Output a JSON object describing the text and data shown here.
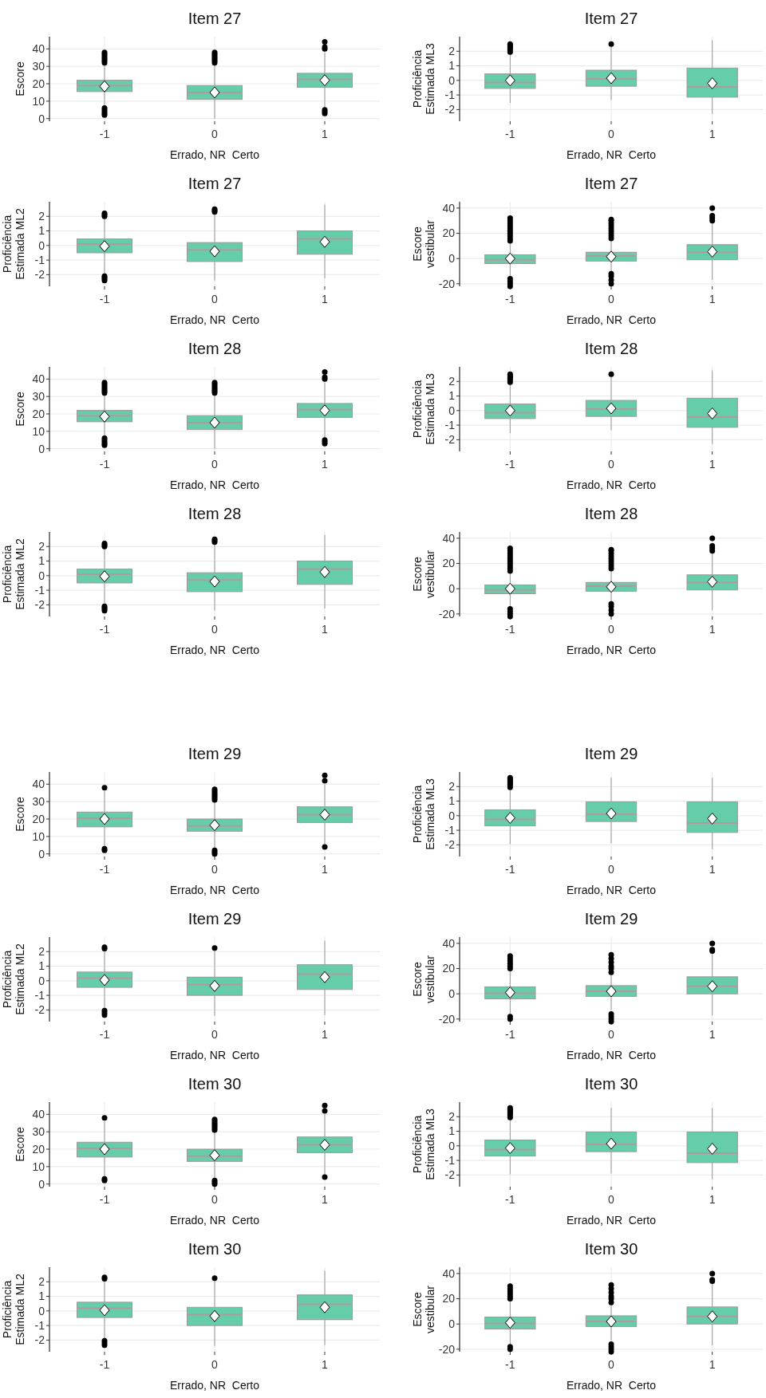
{
  "chart_data": [
    {
      "type": "box",
      "title": "Item 27",
      "xlabel": "Errado, NR  Certo",
      "ylabel": "Escore",
      "categories": [
        "-1",
        "0",
        "1"
      ],
      "color": "#66cdaa",
      "grid": true,
      "ylim": [
        -1.5,
        47
      ],
      "yticks": [
        0,
        10,
        20,
        30,
        40
      ],
      "boxes": [
        {
          "low": 7,
          "q1": 15.5,
          "median": 19,
          "q3": 22,
          "high": 31,
          "mean": 18.5,
          "outliers": [
            2,
            3,
            4,
            5,
            6,
            32,
            33,
            34,
            35,
            36,
            37,
            38
          ]
        },
        {
          "low": 0,
          "q1": 11,
          "median": 15,
          "q3": 19,
          "high": 31,
          "mean": 15,
          "outliers": [
            32,
            33,
            34,
            35,
            36,
            37,
            38
          ]
        },
        {
          "low": 6,
          "q1": 18,
          "median": 22.5,
          "q3": 26,
          "high": 38,
          "mean": 22,
          "outliers": [
            3,
            4,
            5,
            40,
            41,
            44
          ]
        }
      ]
    },
    {
      "type": "box",
      "title": "Item 27",
      "xlabel": "Errado, NR  Certo",
      "ylabel": "Proficiência\nEstimada ML3",
      "categories": [
        "-1",
        "0",
        "1"
      ],
      "color": "#66cdaa",
      "grid": true,
      "ylim": [
        -2.8,
        3.0
      ],
      "yticks": [
        -2,
        -1,
        0,
        1,
        2
      ],
      "boxes": [
        {
          "low": -1.55,
          "q1": -0.55,
          "median": -0.15,
          "q3": 0.45,
          "high": 1.85,
          "mean": 0,
          "outliers": [
            1.95,
            2.1,
            2.2,
            2.3,
            2.4,
            2.5
          ]
        },
        {
          "low": -1.35,
          "q1": -0.4,
          "median": 0.1,
          "q3": 0.7,
          "high": 2.35,
          "mean": 0.15,
          "outliers": [
            2.5
          ]
        },
        {
          "low": -2.3,
          "q1": -1.15,
          "median": -0.45,
          "q3": 0.85,
          "high": 2.75,
          "mean": -0.2
        }
      ]
    },
    {
      "type": "box",
      "title": "Item 27",
      "xlabel": "Errado, NR  Certo",
      "ylabel": "Proficiência\nEstimada ML2",
      "categories": [
        "-1",
        "0",
        "1"
      ],
      "color": "#66cdaa",
      "grid": true,
      "ylim": [
        -2.8,
        3.0
      ],
      "yticks": [
        -2,
        -1,
        0,
        1,
        2
      ],
      "boxes": [
        {
          "low": -1.9,
          "q1": -0.5,
          "median": 0.1,
          "q3": 0.45,
          "high": 1.85,
          "mean": -0.05,
          "outliers": [
            -2.4,
            -2.3,
            -2.2,
            -2.1,
            2,
            2.1,
            2.2
          ]
        },
        {
          "low": -2.4,
          "q1": -1.1,
          "median": -0.3,
          "q3": 0.2,
          "high": 2.2,
          "mean": -0.4,
          "outliers": [
            2.3,
            2.4,
            2.5
          ]
        },
        {
          "low": -2.25,
          "q1": -0.6,
          "median": 0.45,
          "q3": 1,
          "high": 2.8,
          "mean": 0.25
        }
      ]
    },
    {
      "type": "box",
      "title": "Item 27",
      "xlabel": "Errado, NR  Certo",
      "ylabel": "Escore\nvestibular",
      "categories": [
        "-1",
        "0",
        "1"
      ],
      "color": "#66cdaa",
      "grid": true,
      "ylim": [
        -22,
        45
      ],
      "yticks": [
        -20,
        0,
        20,
        40
      ],
      "boxes": [
        {
          "low": -14,
          "q1": -4,
          "median": -1,
          "q3": 3,
          "high": 12,
          "mean": 0,
          "outliers": [
            -22,
            -20,
            -18,
            -16,
            14,
            16,
            18,
            20,
            22,
            24,
            26,
            28,
            30,
            32
          ]
        },
        {
          "low": -11,
          "q1": -2,
          "median": 2,
          "q3": 5,
          "high": 15,
          "mean": 1.5,
          "outliers": [
            -20,
            -17,
            -14,
            -12,
            16,
            18,
            20,
            22,
            24,
            26,
            28,
            30,
            31
          ]
        },
        {
          "low": -17,
          "q1": -1,
          "median": 5,
          "q3": 11,
          "high": 28,
          "mean": 5.5,
          "outliers": [
            30,
            32,
            34,
            40
          ]
        }
      ]
    },
    {
      "type": "box",
      "title": "Item 28",
      "xlabel": "Errado, NR  Certo",
      "ylabel": "Escore",
      "categories": [
        "-1",
        "0",
        "1"
      ],
      "color": "#66cdaa",
      "grid": true,
      "ylim": [
        -1.5,
        47
      ],
      "yticks": [
        0,
        10,
        20,
        30,
        40
      ],
      "boxes": [
        {
          "low": 7,
          "q1": 15.5,
          "median": 19,
          "q3": 22,
          "high": 31,
          "mean": 18.5,
          "outliers": [
            2,
            3,
            4,
            5,
            6,
            32,
            33,
            34,
            35,
            36,
            37,
            38
          ]
        },
        {
          "low": 0,
          "q1": 11,
          "median": 15,
          "q3": 19,
          "high": 31,
          "mean": 15,
          "outliers": [
            32,
            33,
            34,
            35,
            36,
            37,
            38
          ]
        },
        {
          "low": 6,
          "q1": 18,
          "median": 22.5,
          "q3": 26,
          "high": 38,
          "mean": 22,
          "outliers": [
            3,
            4,
            5,
            40,
            41,
            44
          ]
        }
      ]
    },
    {
      "type": "box",
      "title": "Item 28",
      "xlabel": "Errado, NR  Certo",
      "ylabel": "Proficiência\nEstimada ML3",
      "categories": [
        "-1",
        "0",
        "1"
      ],
      "color": "#66cdaa",
      "grid": true,
      "ylim": [
        -2.8,
        3.0
      ],
      "yticks": [
        -2,
        -1,
        0,
        1,
        2
      ],
      "boxes": [
        {
          "low": -1.55,
          "q1": -0.55,
          "median": -0.15,
          "q3": 0.45,
          "high": 1.85,
          "mean": 0,
          "outliers": [
            1.95,
            2.1,
            2.2,
            2.3,
            2.4,
            2.5
          ]
        },
        {
          "low": -1.35,
          "q1": -0.4,
          "median": 0.1,
          "q3": 0.7,
          "high": 2.35,
          "mean": 0.15,
          "outliers": [
            2.5
          ]
        },
        {
          "low": -2.3,
          "q1": -1.15,
          "median": -0.45,
          "q3": 0.85,
          "high": 2.75,
          "mean": -0.2
        }
      ]
    },
    {
      "type": "box",
      "title": "Item 28",
      "xlabel": "Errado, NR  Certo",
      "ylabel": "Proficiência\nEstimada ML2",
      "categories": [
        "-1",
        "0",
        "1"
      ],
      "color": "#66cdaa",
      "grid": true,
      "ylim": [
        -2.8,
        3.0
      ],
      "yticks": [
        -2,
        -1,
        0,
        1,
        2
      ],
      "boxes": [
        {
          "low": -1.9,
          "q1": -0.5,
          "median": 0.1,
          "q3": 0.45,
          "high": 1.85,
          "mean": -0.05,
          "outliers": [
            -2.4,
            -2.3,
            -2.2,
            -2.1,
            2,
            2.1,
            2.2
          ]
        },
        {
          "low": -2.4,
          "q1": -1.1,
          "median": -0.3,
          "q3": 0.2,
          "high": 2.2,
          "mean": -0.4,
          "outliers": [
            2.3,
            2.4,
            2.5
          ]
        },
        {
          "low": -2.25,
          "q1": -0.6,
          "median": 0.45,
          "q3": 1,
          "high": 2.8,
          "mean": 0.25
        }
      ]
    },
    {
      "type": "box",
      "title": "Item 28",
      "xlabel": "Errado, NR  Certo",
      "ylabel": "Escore\nvestibular",
      "categories": [
        "-1",
        "0",
        "1"
      ],
      "color": "#66cdaa",
      "grid": true,
      "ylim": [
        -22,
        45
      ],
      "yticks": [
        -20,
        0,
        20,
        40
      ],
      "boxes": [
        {
          "low": -14,
          "q1": -4,
          "median": -1,
          "q3": 3,
          "high": 12,
          "mean": 0,
          "outliers": [
            -22,
            -20,
            -18,
            -16,
            14,
            16,
            18,
            20,
            22,
            24,
            26,
            28,
            30,
            32
          ]
        },
        {
          "low": -11,
          "q1": -2,
          "median": 2,
          "q3": 5,
          "high": 15,
          "mean": 1.5,
          "outliers": [
            -20,
            -17,
            -14,
            -12,
            16,
            18,
            20,
            22,
            24,
            26,
            28,
            30,
            31
          ]
        },
        {
          "low": -17,
          "q1": -1,
          "median": 5,
          "q3": 11,
          "high": 28,
          "mean": 5.5,
          "outliers": [
            30,
            32,
            34,
            40
          ]
        }
      ]
    },
    {
      "type": "box",
      "title": "Item 29",
      "xlabel": "Errado, NR  Certo",
      "ylabel": "Escore",
      "categories": [
        "-1",
        "0",
        "1"
      ],
      "color": "#66cdaa",
      "grid": true,
      "ylim": [
        -1.5,
        47
      ],
      "yticks": [
        0,
        10,
        20,
        30,
        40
      ],
      "boxes": [
        {
          "low": 4,
          "q1": 15.5,
          "median": 20.5,
          "q3": 24,
          "high": 36,
          "mean": 20,
          "outliers": [
            2,
            3,
            38
          ]
        },
        {
          "low": 3,
          "q1": 13,
          "median": 16,
          "q3": 20,
          "high": 30,
          "mean": 16.5,
          "outliers": [
            0,
            1,
            2,
            31,
            32,
            33,
            34,
            35,
            36,
            37
          ]
        },
        {
          "low": 5,
          "q1": 18,
          "median": 22.5,
          "q3": 27,
          "high": 40,
          "mean": 22.5,
          "outliers": [
            4,
            42,
            45
          ]
        }
      ]
    },
    {
      "type": "box",
      "title": "Item 29",
      "xlabel": "Errado, NR  Certo",
      "ylabel": "Proficiência\nEstimada ML3",
      "categories": [
        "-1",
        "0",
        "1"
      ],
      "color": "#66cdaa",
      "grid": true,
      "ylim": [
        -2.8,
        3.0
      ],
      "yticks": [
        -2,
        -1,
        0,
        1,
        2
      ],
      "boxes": [
        {
          "low": -1.95,
          "q1": -0.7,
          "median": -0.25,
          "q3": 0.4,
          "high": 1.85,
          "mean": -0.15,
          "outliers": [
            1.95,
            2.1,
            2.2,
            2.3,
            2.4,
            2.5,
            2.6
          ]
        },
        {
          "low": -1.9,
          "q1": -0.4,
          "median": 0.1,
          "q3": 0.95,
          "high": 2.6,
          "mean": 0.15
        },
        {
          "low": -2.3,
          "q1": -1.15,
          "median": -0.5,
          "q3": 0.95,
          "high": 2.6,
          "mean": -0.2
        }
      ]
    },
    {
      "type": "box",
      "title": "Item 29",
      "xlabel": "Errado, NR  Certo",
      "ylabel": "Proficiência\nEstimada ML2",
      "categories": [
        "-1",
        "0",
        "1"
      ],
      "color": "#66cdaa",
      "grid": true,
      "ylim": [
        -2.8,
        3.0
      ],
      "yticks": [
        -2,
        -1,
        0,
        1,
        2
      ],
      "boxes": [
        {
          "low": -1.9,
          "q1": -0.45,
          "median": 0.2,
          "q3": 0.6,
          "high": 2,
          "mean": 0.05,
          "outliers": [
            -2.35,
            -2.2,
            -2.05,
            2.2,
            2.3
          ]
        },
        {
          "low": -2.4,
          "q1": -1,
          "median": -0.25,
          "q3": 0.25,
          "high": 2.15,
          "mean": -0.35,
          "outliers": [
            2.25
          ]
        },
        {
          "low": -2.35,
          "q1": -0.6,
          "median": 0.45,
          "q3": 1.1,
          "high": 2.75,
          "mean": 0.25
        }
      ]
    },
    {
      "type": "box",
      "title": "Item 29",
      "xlabel": "Errado, NR  Certo",
      "ylabel": "Escore\nvestibular",
      "categories": [
        "-1",
        "0",
        "1"
      ],
      "color": "#66cdaa",
      "grid": true,
      "ylim": [
        -22,
        45
      ],
      "yticks": [
        -20,
        0,
        20,
        40
      ],
      "boxes": [
        {
          "low": -16,
          "q1": -4,
          "median": 0.5,
          "q3": 5.5,
          "high": 18,
          "mean": 1,
          "outliers": [
            -20,
            -18,
            20,
            22,
            24,
            26,
            28,
            30
          ]
        },
        {
          "low": -13,
          "q1": -2,
          "median": 2,
          "q3": 6.5,
          "high": 15,
          "mean": 2,
          "outliers": [
            -22,
            -20,
            -18,
            -16,
            17,
            20,
            22,
            25,
            28,
            31
          ]
        },
        {
          "low": -17,
          "q1": 0,
          "median": 6,
          "q3": 13.5,
          "high": 32,
          "mean": 6,
          "outliers": [
            34,
            35,
            40
          ]
        }
      ]
    },
    {
      "type": "box",
      "title": "Item 30",
      "xlabel": "Errado, NR  Certo",
      "ylabel": "Escore",
      "categories": [
        "-1",
        "0",
        "1"
      ],
      "color": "#66cdaa",
      "grid": true,
      "ylim": [
        -1.5,
        47
      ],
      "yticks": [
        0,
        10,
        20,
        30,
        40
      ],
      "boxes": [
        {
          "low": 4,
          "q1": 15.5,
          "median": 20.5,
          "q3": 24,
          "high": 36,
          "mean": 20,
          "outliers": [
            2,
            3,
            38
          ]
        },
        {
          "low": 3,
          "q1": 13,
          "median": 16,
          "q3": 20,
          "high": 30,
          "mean": 16.5,
          "outliers": [
            0,
            1,
            2,
            31,
            32,
            33,
            34,
            35,
            36,
            37
          ]
        },
        {
          "low": 5,
          "q1": 18,
          "median": 22.5,
          "q3": 27,
          "high": 40,
          "mean": 22.5,
          "outliers": [
            4,
            42,
            45
          ]
        }
      ]
    },
    {
      "type": "box",
      "title": "Item 30",
      "xlabel": "Errado, NR  Certo",
      "ylabel": "Proficiência\nEstimada ML3",
      "categories": [
        "-1",
        "0",
        "1"
      ],
      "color": "#66cdaa",
      "grid": true,
      "ylim": [
        -2.8,
        3.0
      ],
      "yticks": [
        -2,
        -1,
        0,
        1,
        2
      ],
      "boxes": [
        {
          "low": -1.95,
          "q1": -0.7,
          "median": -0.25,
          "q3": 0.4,
          "high": 1.85,
          "mean": -0.15,
          "outliers": [
            1.95,
            2.1,
            2.2,
            2.3,
            2.4,
            2.5,
            2.6
          ]
        },
        {
          "low": -1.9,
          "q1": -0.4,
          "median": 0.1,
          "q3": 0.95,
          "high": 2.6,
          "mean": 0.15
        },
        {
          "low": -2.3,
          "q1": -1.15,
          "median": -0.5,
          "q3": 0.95,
          "high": 2.6,
          "mean": -0.2
        }
      ]
    },
    {
      "type": "box",
      "title": "Item 30",
      "xlabel": "Errado, NR  Certo",
      "ylabel": "Proficiência\nEstimada ML2",
      "categories": [
        "-1",
        "0",
        "1"
      ],
      "color": "#66cdaa",
      "grid": true,
      "ylim": [
        -2.8,
        3.0
      ],
      "yticks": [
        -2,
        -1,
        0,
        1,
        2
      ],
      "boxes": [
        {
          "low": -1.9,
          "q1": -0.45,
          "median": 0.2,
          "q3": 0.6,
          "high": 2,
          "mean": 0.05,
          "outliers": [
            -2.35,
            -2.2,
            -2.05,
            2.2,
            2.3
          ]
        },
        {
          "low": -2.4,
          "q1": -1,
          "median": -0.25,
          "q3": 0.25,
          "high": 2.15,
          "mean": -0.35,
          "outliers": [
            2.25
          ]
        },
        {
          "low": -2.35,
          "q1": -0.6,
          "median": 0.45,
          "q3": 1.1,
          "high": 2.75,
          "mean": 0.25
        }
      ]
    },
    {
      "type": "box",
      "title": "Item 30",
      "xlabel": "Errado, NR  Certo",
      "ylabel": "Escore\nvestibular",
      "categories": [
        "-1",
        "0",
        "1"
      ],
      "color": "#66cdaa",
      "grid": true,
      "ylim": [
        -22,
        45
      ],
      "yticks": [
        -20,
        0,
        20,
        40
      ],
      "boxes": [
        {
          "low": -16,
          "q1": -4,
          "median": 0.5,
          "q3": 5.5,
          "high": 18,
          "mean": 1,
          "outliers": [
            -20,
            -18,
            20,
            22,
            24,
            26,
            28,
            30
          ]
        },
        {
          "low": -13,
          "q1": -2,
          "median": 2,
          "q3": 6.5,
          "high": 15,
          "mean": 2,
          "outliers": [
            -22,
            -20,
            -18,
            -16,
            17,
            20,
            22,
            25,
            28,
            31
          ]
        },
        {
          "low": -17,
          "q1": 0,
          "median": 6,
          "q3": 13.5,
          "high": 32,
          "mean": 6,
          "outliers": [
            34,
            35,
            40
          ]
        }
      ]
    }
  ]
}
